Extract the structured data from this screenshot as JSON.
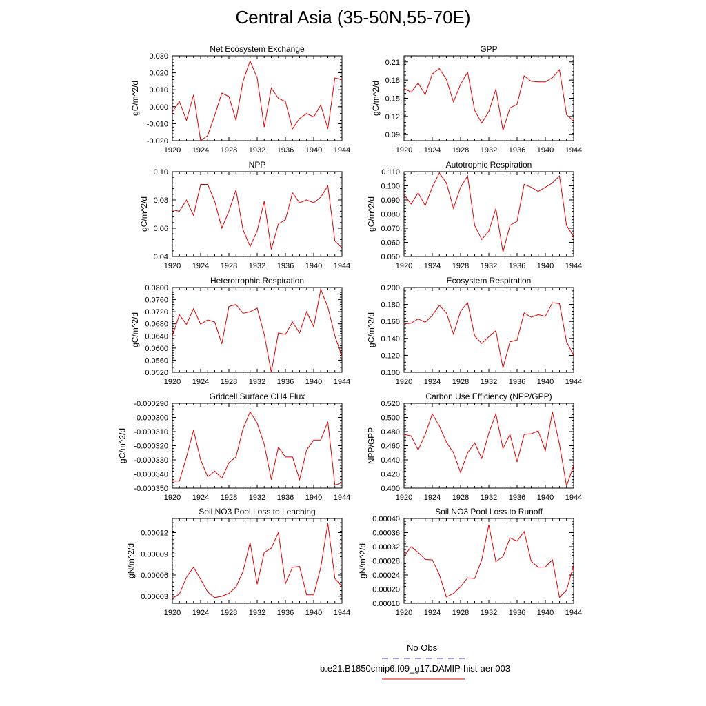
{
  "page_title": "Central Asia (35-50N,55-70E)",
  "legend": {
    "entries": [
      {
        "label": "No Obs",
        "color": "#3333cc",
        "dash": true
      },
      {
        "label": "b.e21.B1850cmip6.f09_g17.DAMIP-hist-aer.003",
        "color": "#dd0000",
        "dash": false
      }
    ]
  },
  "chart_data": [
    {
      "type": "line",
      "title": "Net Ecosystem Exchange",
      "ylabel": "gC/m^2/d",
      "x": [
        1920,
        1921,
        1922,
        1923,
        1924,
        1925,
        1926,
        1927,
        1928,
        1929,
        1930,
        1931,
        1932,
        1933,
        1934,
        1935,
        1936,
        1937,
        1938,
        1939,
        1940,
        1941,
        1942,
        1943,
        1944
      ],
      "xlim": [
        1920,
        1944
      ],
      "xticks": [
        "1920",
        "1924",
        "1928",
        "1932",
        "1936",
        "1940",
        "1944"
      ],
      "ylim": [
        -0.02,
        0.03
      ],
      "yticks": [
        "-0.020",
        "-0.010",
        "0.000",
        "0.010",
        "0.020",
        "0.030"
      ],
      "series": [
        {
          "color": "#dd0000",
          "values": [
            -0.003,
            0.003,
            -0.008,
            0.007,
            -0.02,
            -0.017,
            -0.005,
            0.008,
            0.006,
            -0.008,
            0.015,
            0.027,
            0.017,
            -0.012,
            0.011,
            0.005,
            0.003,
            -0.013,
            -0.007,
            -0.004,
            -0.006,
            0.001,
            -0.013,
            0.017,
            0.016
          ]
        }
      ]
    },
    {
      "type": "line",
      "title": "GPP",
      "ylabel": "gC/m^2/d",
      "x": [
        1920,
        1921,
        1922,
        1923,
        1924,
        1925,
        1926,
        1927,
        1928,
        1929,
        1930,
        1931,
        1932,
        1933,
        1934,
        1935,
        1936,
        1937,
        1938,
        1939,
        1940,
        1941,
        1942,
        1943,
        1944
      ],
      "xlim": [
        1920,
        1944
      ],
      "xticks": [
        "1920",
        "1924",
        "1928",
        "1932",
        "1936",
        "1940",
        "1944"
      ],
      "ylim": [
        0.08,
        0.22
      ],
      "yticks": [
        "0.09",
        "0.12",
        "0.15",
        "0.18",
        "0.21"
      ],
      "series": [
        {
          "color": "#dd0000",
          "values": [
            0.166,
            0.16,
            0.175,
            0.156,
            0.19,
            0.199,
            0.181,
            0.144,
            0.173,
            0.193,
            0.13,
            0.109,
            0.128,
            0.165,
            0.097,
            0.134,
            0.14,
            0.187,
            0.178,
            0.177,
            0.177,
            0.184,
            0.197,
            0.123,
            0.112
          ]
        }
      ]
    },
    {
      "type": "line",
      "title": "NPP",
      "ylabel": "gC/m^2/d",
      "x": [
        1920,
        1921,
        1922,
        1923,
        1924,
        1925,
        1926,
        1927,
        1928,
        1929,
        1930,
        1931,
        1932,
        1933,
        1934,
        1935,
        1936,
        1937,
        1938,
        1939,
        1940,
        1941,
        1942,
        1943,
        1944
      ],
      "xlim": [
        1920,
        1944
      ],
      "xticks": [
        "1920",
        "1924",
        "1928",
        "1932",
        "1936",
        "1940",
        "1944"
      ],
      "ylim": [
        0.04,
        0.1
      ],
      "yticks": [
        "0.04",
        "0.06",
        "0.08",
        "0.10"
      ],
      "series": [
        {
          "color": "#dd0000",
          "values": [
            0.073,
            0.072,
            0.08,
            0.069,
            0.091,
            0.091,
            0.079,
            0.06,
            0.072,
            0.087,
            0.059,
            0.047,
            0.058,
            0.079,
            0.045,
            0.063,
            0.066,
            0.085,
            0.078,
            0.08,
            0.078,
            0.082,
            0.09,
            0.051,
            0.046
          ]
        }
      ]
    },
    {
      "type": "line",
      "title": "Autotrophic Respiration",
      "ylabel": "gC/m^2/d",
      "x": [
        1920,
        1921,
        1922,
        1923,
        1924,
        1925,
        1926,
        1927,
        1928,
        1929,
        1930,
        1931,
        1932,
        1933,
        1934,
        1935,
        1936,
        1937,
        1938,
        1939,
        1940,
        1941,
        1942,
        1943,
        1944
      ],
      "xlim": [
        1920,
        1944
      ],
      "xticks": [
        "1920",
        "1924",
        "1928",
        "1932",
        "1936",
        "1940",
        "1944"
      ],
      "ylim": [
        0.05,
        0.11
      ],
      "yticks": [
        "0.050",
        "0.060",
        "0.070",
        "0.080",
        "0.090",
        "0.100",
        "0.110"
      ],
      "series": [
        {
          "color": "#dd0000",
          "values": [
            0.094,
            0.087,
            0.095,
            0.086,
            0.099,
            0.109,
            0.102,
            0.084,
            0.099,
            0.107,
            0.072,
            0.062,
            0.068,
            0.084,
            0.053,
            0.072,
            0.075,
            0.101,
            0.099,
            0.096,
            0.099,
            0.102,
            0.107,
            0.072,
            0.064
          ]
        }
      ]
    },
    {
      "type": "line",
      "title": "Heterotrophic Respiration",
      "ylabel": "gC/m^2/d",
      "x": [
        1920,
        1921,
        1922,
        1923,
        1924,
        1925,
        1926,
        1927,
        1928,
        1929,
        1930,
        1931,
        1932,
        1933,
        1934,
        1935,
        1936,
        1937,
        1938,
        1939,
        1940,
        1941,
        1942,
        1943,
        1944
      ],
      "xlim": [
        1920,
        1944
      ],
      "xticks": [
        "1920",
        "1924",
        "1928",
        "1932",
        "1936",
        "1940",
        "1944"
      ],
      "ylim": [
        0.052,
        0.08
      ],
      "yticks": [
        "0.0520",
        "0.0560",
        "0.0600",
        "0.0640",
        "0.0680",
        "0.0720",
        "0.0760",
        "0.0800"
      ],
      "series": [
        {
          "color": "#dd0000",
          "values": [
            0.064,
            0.071,
            0.0678,
            0.073,
            0.0679,
            0.0693,
            0.0686,
            0.0614,
            0.0737,
            0.0744,
            0.0715,
            0.072,
            0.0732,
            0.0645,
            0.052,
            0.065,
            0.0645,
            0.0686,
            0.065,
            0.072,
            0.067,
            0.0794,
            0.0735,
            0.064,
            0.0572
          ]
        }
      ]
    },
    {
      "type": "line",
      "title": "Ecosystem Respiration",
      "ylabel": "gC/m^2/d",
      "x": [
        1920,
        1921,
        1922,
        1923,
        1924,
        1925,
        1926,
        1927,
        1928,
        1929,
        1930,
        1931,
        1932,
        1933,
        1934,
        1935,
        1936,
        1937,
        1938,
        1939,
        1940,
        1941,
        1942,
        1943,
        1944
      ],
      "xlim": [
        1920,
        1944
      ],
      "xticks": [
        "1920",
        "1924",
        "1928",
        "1932",
        "1936",
        "1940",
        "1944"
      ],
      "ylim": [
        0.1,
        0.2
      ],
      "yticks": [
        "0.100",
        "0.120",
        "0.140",
        "0.160",
        "0.180",
        "0.200"
      ],
      "series": [
        {
          "color": "#dd0000",
          "values": [
            0.157,
            0.158,
            0.163,
            0.159,
            0.167,
            0.179,
            0.17,
            0.145,
            0.172,
            0.182,
            0.143,
            0.134,
            0.142,
            0.149,
            0.105,
            0.136,
            0.138,
            0.17,
            0.165,
            0.168,
            0.166,
            0.182,
            0.181,
            0.136,
            0.12
          ]
        }
      ]
    },
    {
      "type": "line",
      "title": "Gridcell Surface CH4 Flux",
      "ylabel": "gC/m^2/d",
      "x": [
        1920,
        1921,
        1922,
        1923,
        1924,
        1925,
        1926,
        1927,
        1928,
        1929,
        1930,
        1931,
        1932,
        1933,
        1934,
        1935,
        1936,
        1937,
        1938,
        1939,
        1940,
        1941,
        1942,
        1943,
        1944
      ],
      "xlim": [
        1920,
        1944
      ],
      "xticks": [
        "1920",
        "1924",
        "1928",
        "1932",
        "1936",
        "1940",
        "1944"
      ],
      "ylim": [
        -0.00035,
        -0.00029
      ],
      "yticks": [
        "-0.000350",
        "-0.000340",
        "-0.000330",
        "-0.000320",
        "-0.000310",
        "-0.000300",
        "-0.000290"
      ],
      "series": [
        {
          "color": "#dd0000",
          "values": [
            -0.000345,
            -0.000345,
            -0.000328,
            -0.000309,
            -0.00033,
            -0.000342,
            -0.000338,
            -0.000343,
            -0.000332,
            -0.000328,
            -0.000308,
            -0.000296,
            -0.000304,
            -0.000319,
            -0.000344,
            -0.000321,
            -0.000328,
            -0.000328,
            -0.000344,
            -0.000323,
            -0.000316,
            -0.000316,
            -0.000303,
            -0.000348,
            -0.000346
          ]
        }
      ]
    },
    {
      "type": "line",
      "title": "Carbon Use Efficiency (NPP/GPP)",
      "ylabel": "NPP/GPP",
      "x": [
        1920,
        1921,
        1922,
        1923,
        1924,
        1925,
        1926,
        1927,
        1928,
        1929,
        1930,
        1931,
        1932,
        1933,
        1934,
        1935,
        1936,
        1937,
        1938,
        1939,
        1940,
        1941,
        1942,
        1943,
        1944
      ],
      "xlim": [
        1920,
        1944
      ],
      "xticks": [
        "1920",
        "1924",
        "1928",
        "1932",
        "1936",
        "1940",
        "1944"
      ],
      "ylim": [
        0.4,
        0.52
      ],
      "yticks": [
        "0.400",
        "0.420",
        "0.440",
        "0.460",
        "0.480",
        "0.500",
        "0.520"
      ],
      "series": [
        {
          "color": "#dd0000",
          "values": [
            0.476,
            0.474,
            0.454,
            0.476,
            0.505,
            0.488,
            0.465,
            0.45,
            0.422,
            0.45,
            0.464,
            0.442,
            0.478,
            0.505,
            0.456,
            0.476,
            0.437,
            0.476,
            0.477,
            0.481,
            0.453,
            0.508,
            0.462,
            0.403,
            0.432
          ]
        }
      ]
    },
    {
      "type": "line",
      "title": "Soil NO3 Pool Loss to Leaching",
      "ylabel": "gN/m^2/d",
      "x": [
        1920,
        1921,
        1922,
        1923,
        1924,
        1925,
        1926,
        1927,
        1928,
        1929,
        1930,
        1931,
        1932,
        1933,
        1934,
        1935,
        1936,
        1937,
        1938,
        1939,
        1940,
        1941,
        1942,
        1943,
        1944
      ],
      "xlim": [
        1920,
        1944
      ],
      "xticks": [
        "1920",
        "1924",
        "1928",
        "1932",
        "1936",
        "1940",
        "1944"
      ],
      "ylim": [
        2e-05,
        0.00014
      ],
      "yticks": [
        "0.00003",
        "0.00006",
        "0.00009",
        "0.00012"
      ],
      "series": [
        {
          "color": "#dd0000",
          "values": [
            2.7e-05,
            3.3e-05,
            5.7e-05,
            7.1e-05,
            5.4e-05,
            3.6e-05,
            2.8e-05,
            3e-05,
            3.4e-05,
            4.3e-05,
            6.5e-05,
            0.000106,
            4.7e-05,
            9.2e-05,
            9.8e-05,
            0.00012,
            4.8e-05,
            7.1e-05,
            7.2e-05,
            3.2e-05,
            3.2e-05,
            7.1e-05,
            0.000133,
            5.5e-05,
            4.4e-05
          ]
        }
      ]
    },
    {
      "type": "line",
      "title": "Soil NO3 Pool Loss to Runoff",
      "ylabel": "gN/m^2/d",
      "x": [
        1920,
        1921,
        1922,
        1923,
        1924,
        1925,
        1926,
        1927,
        1928,
        1929,
        1930,
        1931,
        1932,
        1933,
        1934,
        1935,
        1936,
        1937,
        1938,
        1939,
        1940,
        1941,
        1942,
        1943,
        1944
      ],
      "xlim": [
        1920,
        1944
      ],
      "xticks": [
        "1920",
        "1924",
        "1928",
        "1932",
        "1936",
        "1940",
        "1944"
      ],
      "ylim": [
        0.00016,
        0.0004
      ],
      "yticks": [
        "0.00016",
        "0.00020",
        "0.00024",
        "0.00028",
        "0.00032",
        "0.00036",
        "0.00040"
      ],
      "series": [
        {
          "color": "#dd0000",
          "values": [
            0.000293,
            0.00032,
            0.000304,
            0.000284,
            0.000283,
            0.000241,
            0.000178,
            0.000188,
            0.000207,
            0.000232,
            0.00023,
            0.000283,
            0.000382,
            0.000278,
            0.000292,
            0.000345,
            0.000336,
            0.000363,
            0.000279,
            0.000262,
            0.000263,
            0.000283,
            0.000177,
            0.000197,
            0.000268
          ]
        }
      ]
    }
  ]
}
